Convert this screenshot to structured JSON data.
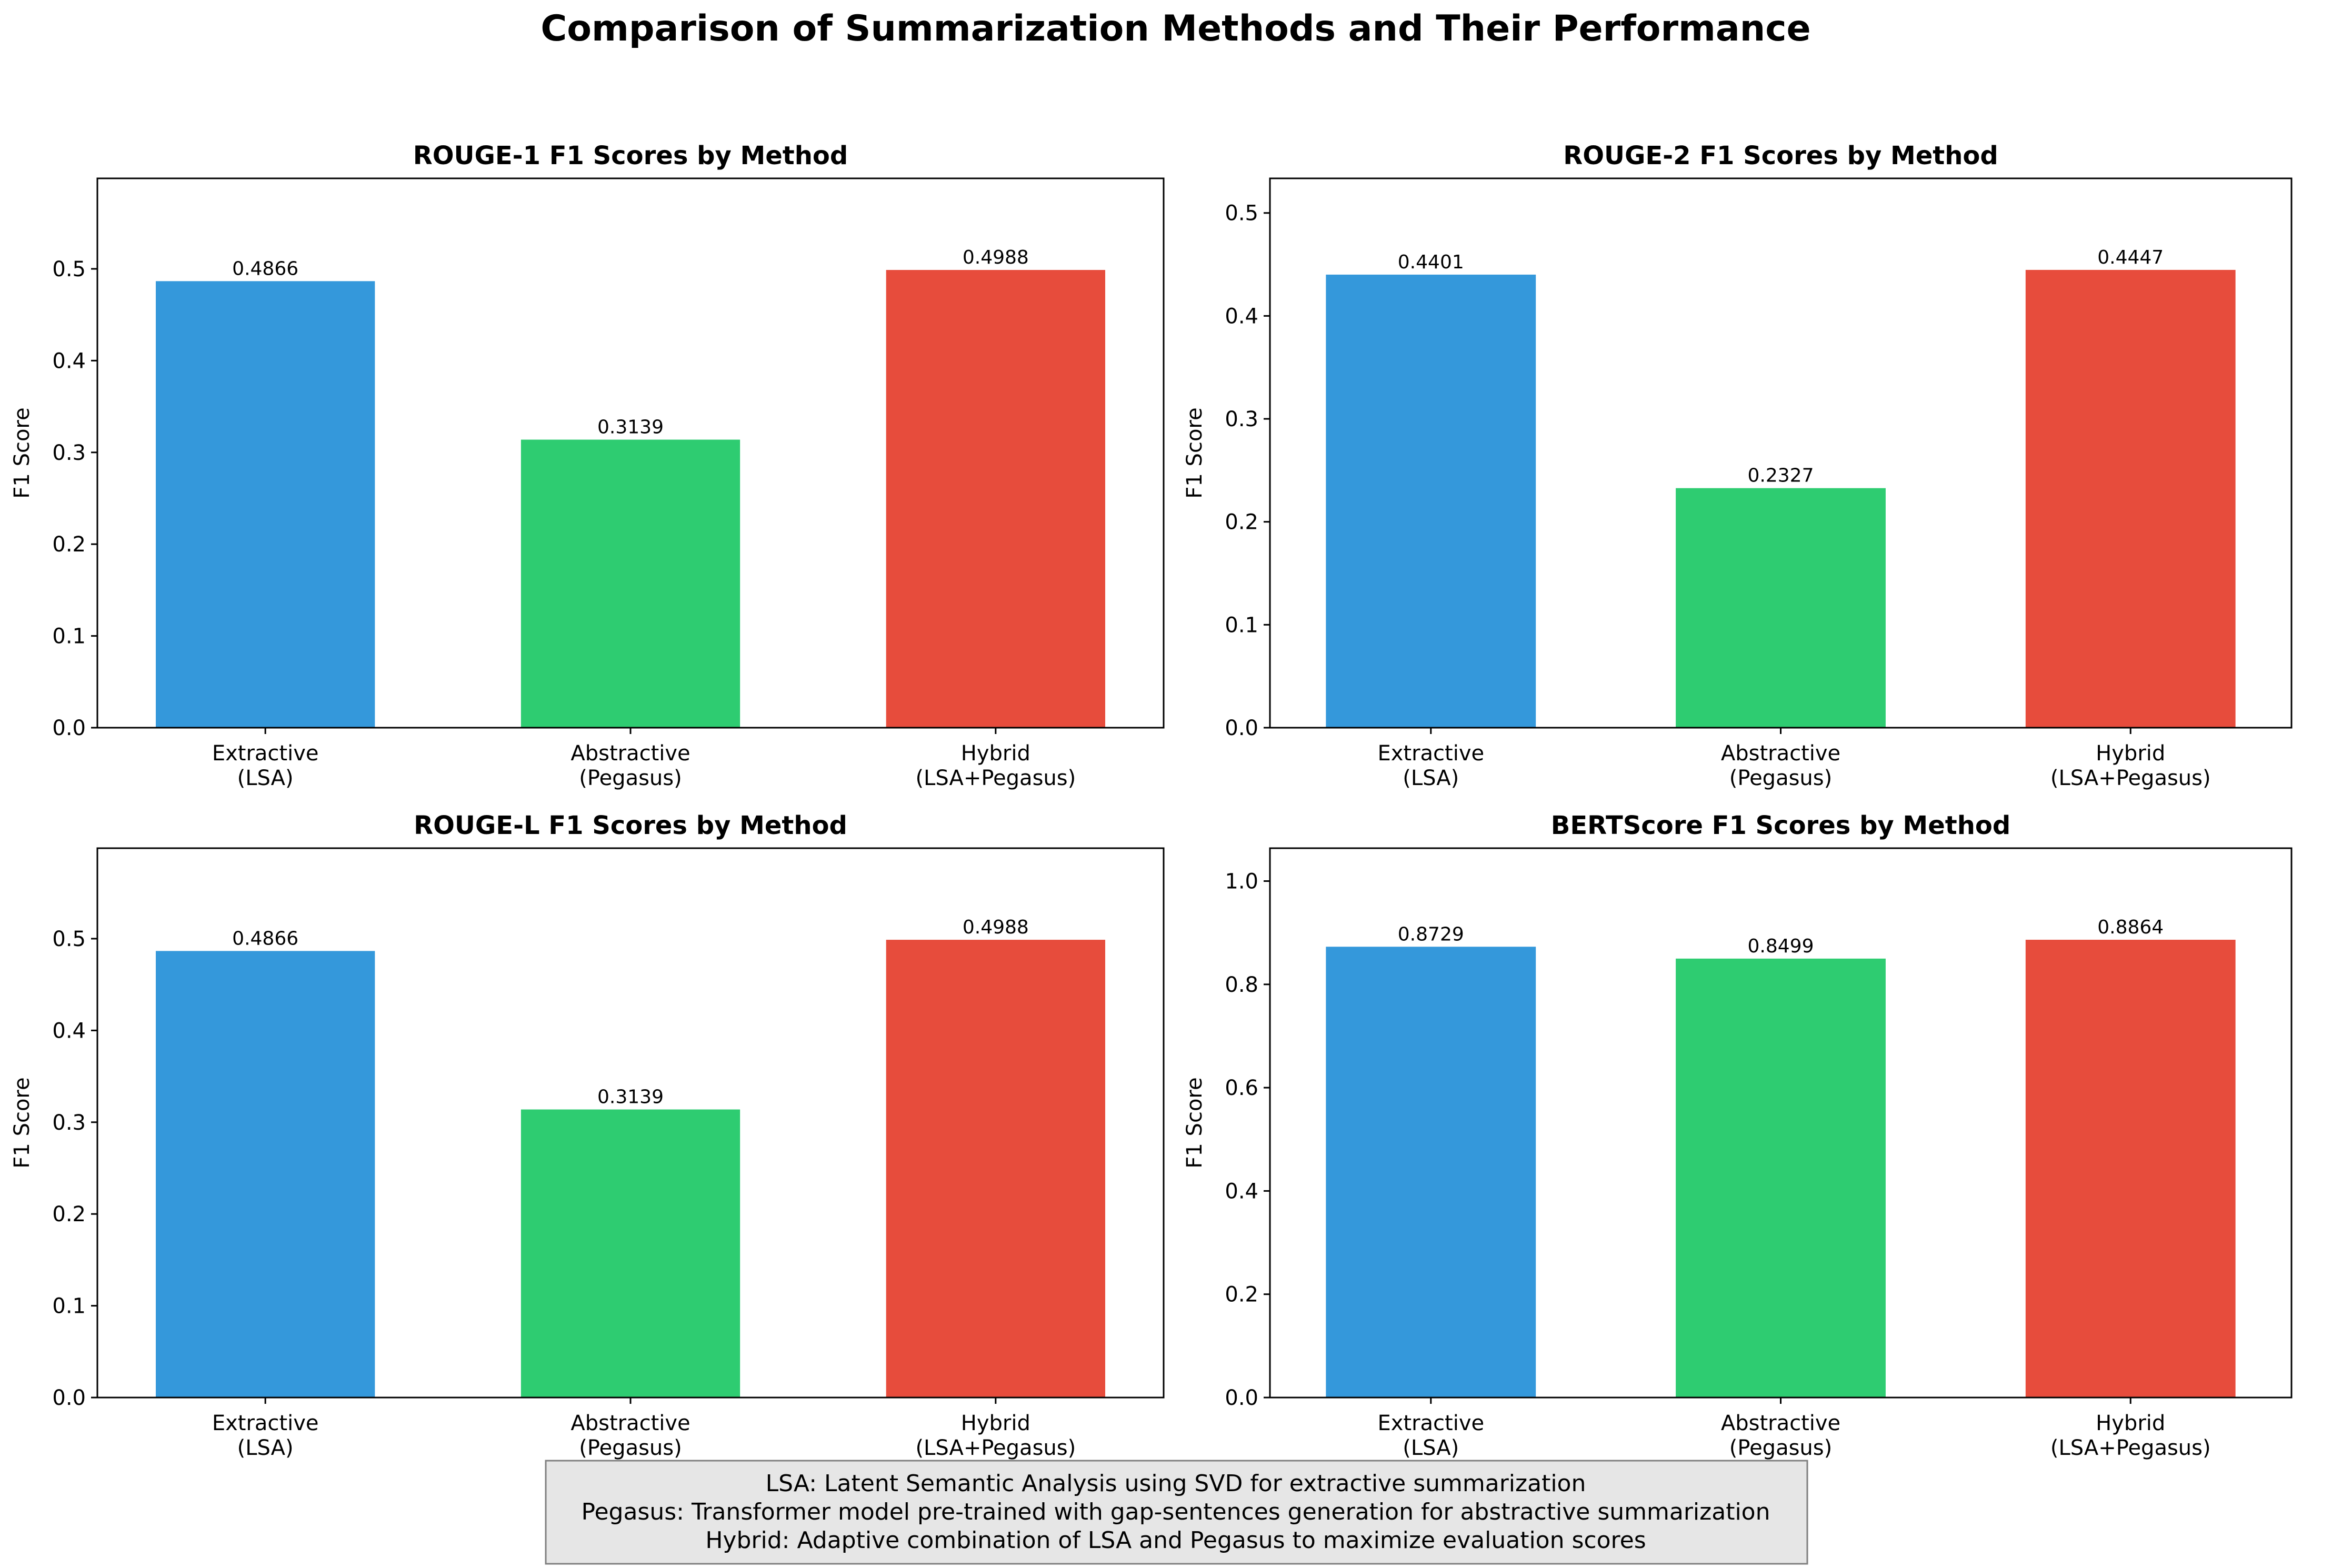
{
  "suptitle": "Comparison of Summarization Methods and Their Performance",
  "footnote": {
    "lines": [
      "LSA: Latent Semantic Analysis using SVD for extractive summarization",
      "Pegasus: Transformer model pre-trained with gap-sentences generation for abstractive summarization",
      "Hybrid: Adaptive combination of LSA and Pegasus to maximize evaluation scores"
    ]
  },
  "chart_data": [
    {
      "type": "bar",
      "title": "ROUGE-1 F1 Scores by Method",
      "xlabel": "",
      "ylabel": "F1 Score",
      "categories": [
        "Extractive\n(LSA)",
        "Abstractive\n(Pegasus)",
        "Hybrid\n(LSA+Pegasus)"
      ],
      "values": [
        0.4866,
        0.3139,
        0.4988
      ],
      "value_labels": [
        "0.4866",
        "0.3139",
        "0.4988"
      ],
      "colors": [
        "#3498db",
        "#2ecc71",
        "#e74c3c"
      ],
      "ylim": [
        0,
        0.5986
      ],
      "yticks": [
        0.0,
        0.1,
        0.2,
        0.3,
        0.4,
        0.5
      ],
      "ytick_labels": [
        "0.0",
        "0.1",
        "0.2",
        "0.3",
        "0.4",
        "0.5"
      ],
      "grid": false
    },
    {
      "type": "bar",
      "title": "ROUGE-2 F1 Scores by Method",
      "xlabel": "",
      "ylabel": "F1 Score",
      "categories": [
        "Extractive\n(LSA)",
        "Abstractive\n(Pegasus)",
        "Hybrid\n(LSA+Pegasus)"
      ],
      "values": [
        0.4401,
        0.2327,
        0.4447
      ],
      "value_labels": [
        "0.4401",
        "0.2327",
        "0.4447"
      ],
      "colors": [
        "#3498db",
        "#2ecc71",
        "#e74c3c"
      ],
      "ylim": [
        0,
        0.5336
      ],
      "yticks": [
        0.0,
        0.1,
        0.2,
        0.3,
        0.4,
        0.5
      ],
      "ytick_labels": [
        "0.0",
        "0.1",
        "0.2",
        "0.3",
        "0.4",
        "0.5"
      ],
      "grid": false
    },
    {
      "type": "bar",
      "title": "ROUGE-L F1 Scores by Method",
      "xlabel": "",
      "ylabel": "F1 Score",
      "categories": [
        "Extractive\n(LSA)",
        "Abstractive\n(Pegasus)",
        "Hybrid\n(LSA+Pegasus)"
      ],
      "values": [
        0.4866,
        0.3139,
        0.4988
      ],
      "value_labels": [
        "0.4866",
        "0.3139",
        "0.4988"
      ],
      "colors": [
        "#3498db",
        "#2ecc71",
        "#e74c3c"
      ],
      "ylim": [
        0,
        0.5986
      ],
      "yticks": [
        0.0,
        0.1,
        0.2,
        0.3,
        0.4,
        0.5
      ],
      "ytick_labels": [
        "0.0",
        "0.1",
        "0.2",
        "0.3",
        "0.4",
        "0.5"
      ],
      "grid": false
    },
    {
      "type": "bar",
      "title": "BERTScore F1 Scores by Method",
      "xlabel": "",
      "ylabel": "F1 Score",
      "categories": [
        "Extractive\n(LSA)",
        "Abstractive\n(Pegasus)",
        "Hybrid\n(LSA+Pegasus)"
      ],
      "values": [
        0.8729,
        0.8499,
        0.8864
      ],
      "value_labels": [
        "0.8729",
        "0.8499",
        "0.8864"
      ],
      "colors": [
        "#3498db",
        "#2ecc71",
        "#e74c3c"
      ],
      "ylim": [
        0,
        1.0637
      ],
      "yticks": [
        0.0,
        0.2,
        0.4,
        0.6,
        0.8,
        1.0
      ],
      "ytick_labels": [
        "0.0",
        "0.2",
        "0.4",
        "0.6",
        "0.8",
        "1.0"
      ],
      "grid": false
    }
  ]
}
